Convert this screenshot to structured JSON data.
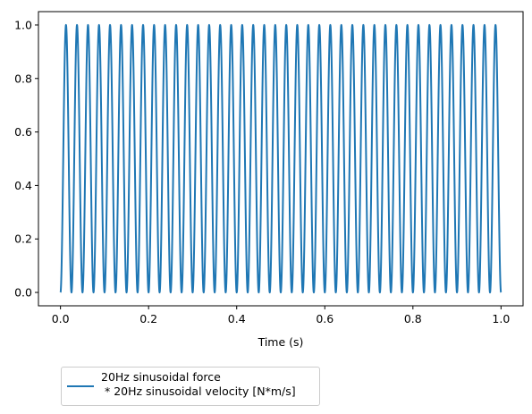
{
  "chart_data": {
    "type": "line",
    "title": "",
    "xlabel": "Time (s)",
    "ylabel": "",
    "xlim": [
      -0.05,
      1.05
    ],
    "ylim": [
      -0.05,
      1.05
    ],
    "x_ticks": [
      0.0,
      0.2,
      0.4,
      0.6,
      0.8,
      1.0
    ],
    "x_tick_labels": [
      "0.0",
      "0.2",
      "0.4",
      "0.6",
      "0.8",
      "1.0"
    ],
    "y_ticks": [
      0.0,
      0.2,
      0.4,
      0.6,
      0.8,
      1.0
    ],
    "y_tick_labels": [
      "0.0",
      "0.2",
      "0.4",
      "0.6",
      "0.8",
      "1.0"
    ],
    "grid": false,
    "legend_position": "below-left",
    "series": [
      {
        "name": "20Hz sinusoidal force\n * 20Hz sinusoidal velocity [N*m/s]",
        "function": "sin^2(2*pi*20*t)",
        "frequency_hz": 20,
        "x_range": [
          0.0,
          1.0
        ],
        "y_min": 0.0,
        "y_max": 1.0,
        "color": "#1f77b4"
      }
    ]
  }
}
